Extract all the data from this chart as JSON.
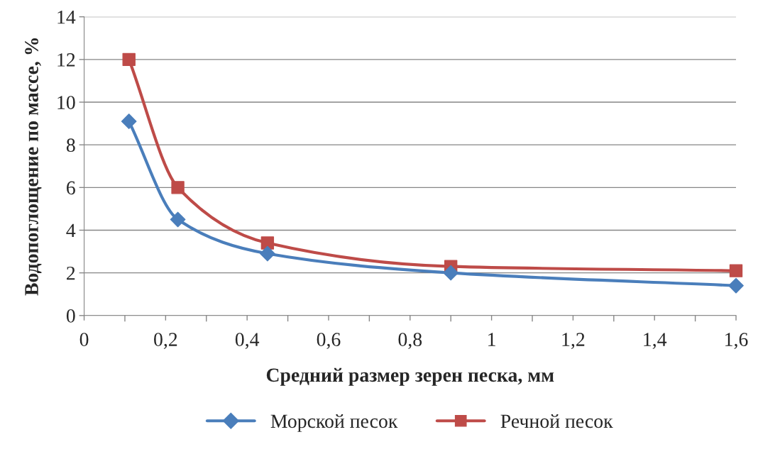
{
  "chart_data": {
    "type": "line",
    "xlabel": "Средний размер зерен песка, мм",
    "ylabel": "Водопоглощение по массе, %",
    "x": [
      0.11,
      0.23,
      0.45,
      0.9,
      1.6
    ],
    "series": [
      {
        "name": "Морской песок",
        "color": "#4a7ebb",
        "marker": "diamond",
        "values": [
          9.1,
          4.5,
          2.9,
          2.0,
          1.4
        ]
      },
      {
        "name": "Речной песок",
        "color": "#be4b48",
        "marker": "square",
        "values": [
          12,
          6,
          3.4,
          2.3,
          2.1
        ]
      }
    ],
    "xlim": [
      0,
      1.6
    ],
    "ylim": [
      0,
      14
    ],
    "xticks": [
      0,
      {
        "value": 0.1,
        "label": null
      },
      {
        "value": 0.2,
        "label": "0,2"
      },
      {
        "value": 0.3,
        "label": null
      },
      {
        "value": 0.4,
        "label": "0,4"
      },
      {
        "value": 0.5,
        "label": null
      },
      {
        "value": 0.6,
        "label": "0,6"
      },
      {
        "value": 0.7,
        "label": null
      },
      {
        "value": 0.8,
        "label": "0,8"
      },
      {
        "value": 0.9,
        "label": null
      },
      1,
      {
        "value": 1.1,
        "label": null
      },
      {
        "value": 1.2,
        "label": "1,2"
      },
      {
        "value": 1.3,
        "label": null
      },
      {
        "value": 1.4,
        "label": "1,4"
      },
      {
        "value": 1.5,
        "label": null
      },
      {
        "value": 1.6,
        "label": "1,6"
      }
    ],
    "yticks": [
      0,
      2,
      4,
      6,
      8,
      10,
      12,
      14
    ],
    "grid": "y",
    "legend": "bottom",
    "line_style": "solid"
  }
}
